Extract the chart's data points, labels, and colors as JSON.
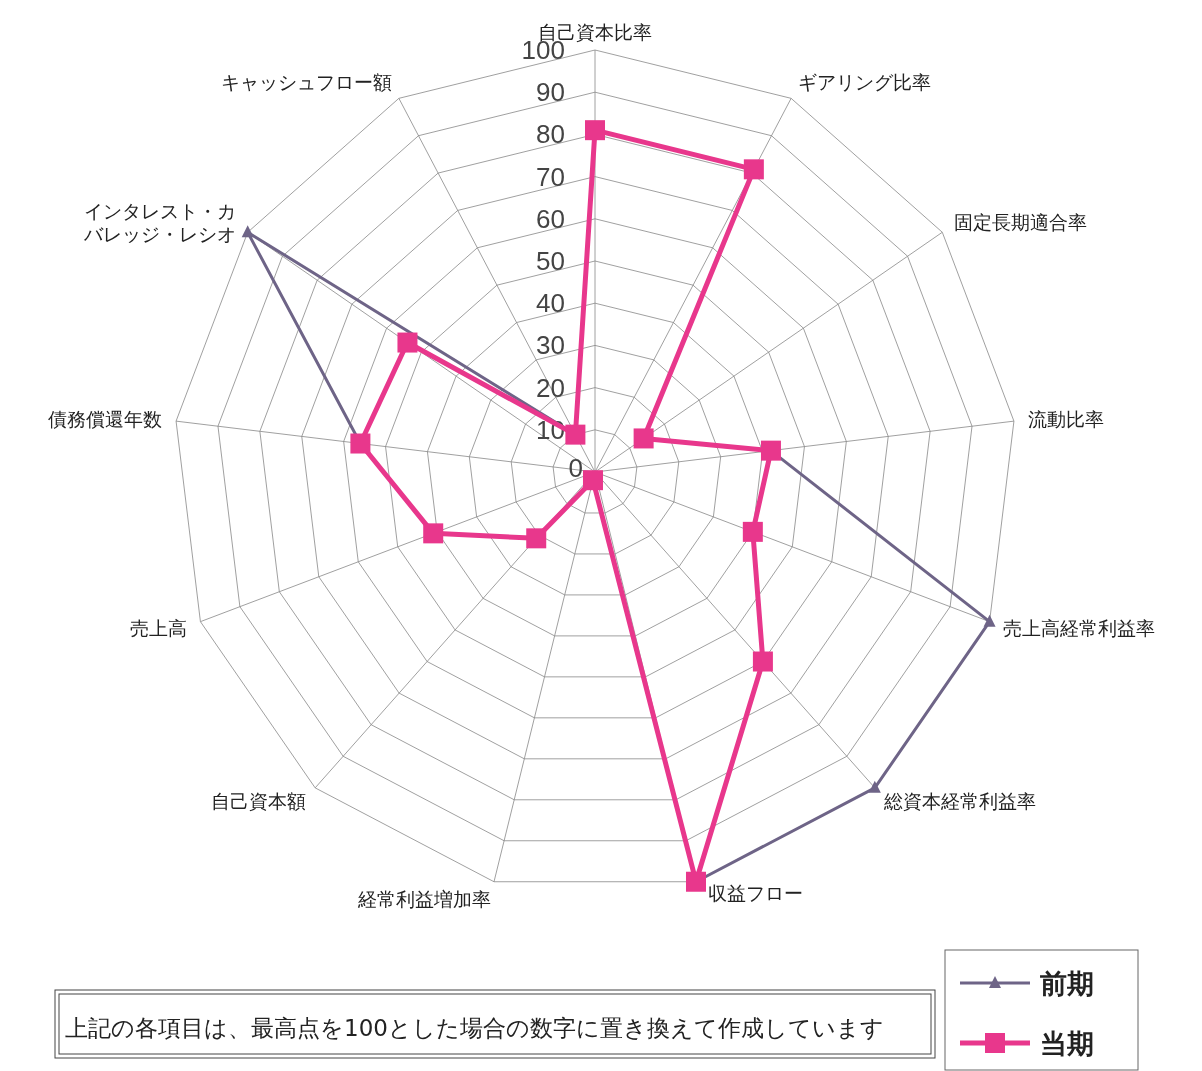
{
  "chart_data": {
    "type": "radar",
    "categories": [
      "自己資本比率",
      "ギアリング比率",
      "固定長期適合率",
      "流動比率",
      "売上高経常利益率",
      "総資本経常利益率",
      "収益フロー",
      "経常利益増加率",
      "自己資本額",
      "売上高",
      "債務償還年数",
      "インタレスト・カバレッジ・レシオ",
      "キャッシュフロー額"
    ],
    "series": [
      {
        "name": "前期",
        "color": "#6e6487",
        "marker": "triangle",
        "values": [
          81,
          81,
          14,
          42,
          100,
          100,
          100,
          2,
          21,
          41,
          56,
          100,
          10
        ]
      },
      {
        "name": "当期",
        "color": "#e8378c",
        "marker": "square",
        "values": [
          81,
          81,
          14,
          42,
          40,
          60,
          100,
          2,
          21,
          41,
          56,
          54,
          10
        ]
      }
    ],
    "ylim": [
      0,
      100
    ],
    "yticks": [
      0,
      10,
      20,
      30,
      40,
      50,
      60,
      70,
      80,
      90,
      100
    ],
    "grid": true,
    "legend": "bottom right",
    "annotations": [
      "上記の各項目は、最高点を100とした場合の数字に置き換えて作成しています"
    ]
  }
}
